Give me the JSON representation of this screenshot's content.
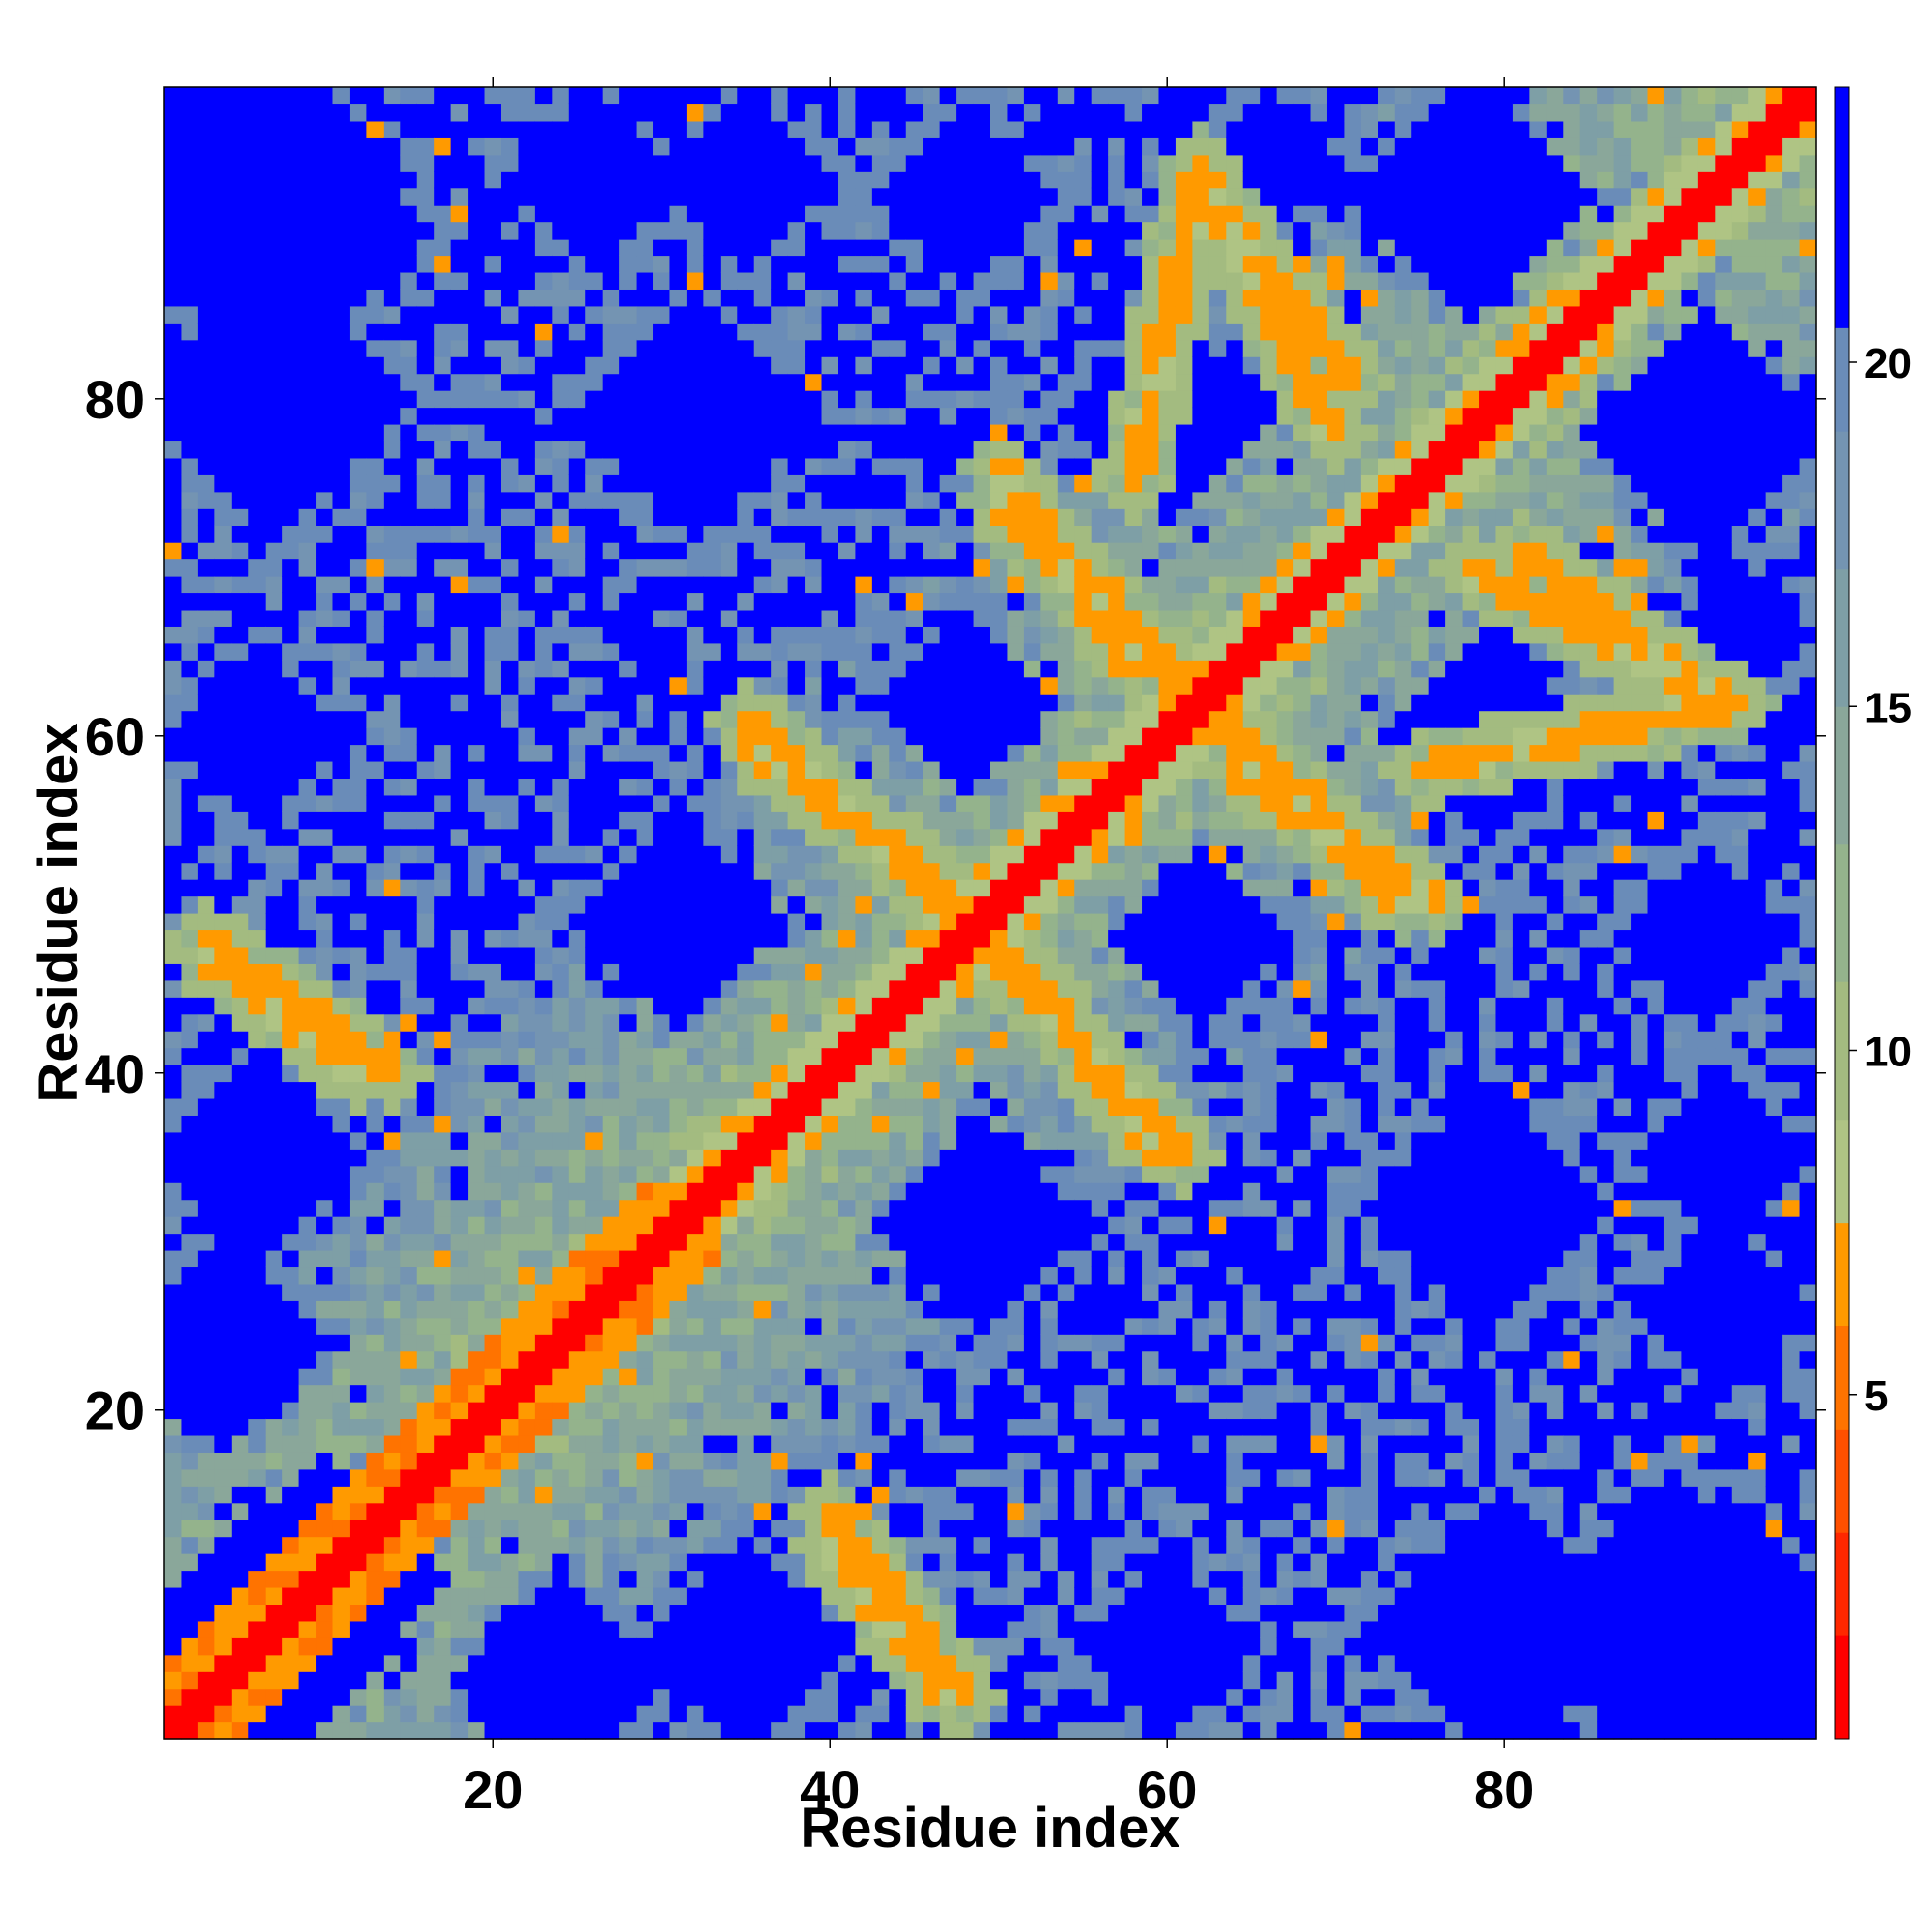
{
  "chart_data": {
    "type": "heatmap",
    "title": "",
    "xlabel": "Residue index",
    "ylabel": "Residue index",
    "n_residues": 98,
    "xlim": [
      0.5,
      98.5
    ],
    "ylim": [
      0.5,
      98.5
    ],
    "x_ticks": [
      20,
      40,
      60,
      80
    ],
    "x_tick_labels": [
      "20",
      "40",
      "60",
      "80"
    ],
    "y_ticks": [
      20,
      40,
      60,
      80
    ],
    "y_tick_labels": [
      "20",
      "40",
      "60",
      "80"
    ],
    "colorbar": {
      "range": [
        0,
        24
      ],
      "ticks": [
        5,
        10,
        15,
        20
      ],
      "tick_labels": [
        "5",
        "10",
        "15",
        "20"
      ],
      "bins": [
        {
          "max": 1.5,
          "color": "#ff0000"
        },
        {
          "max": 3.0,
          "color": "#ff2800"
        },
        {
          "max": 4.5,
          "color": "#ff5000"
        },
        {
          "max": 6.0,
          "color": "#ff7300"
        },
        {
          "max": 7.5,
          "color": "#ff9a00"
        },
        {
          "max": 9.0,
          "color": "#afc484"
        },
        {
          "max": 11.0,
          "color": "#a3bb80"
        },
        {
          "max": 13.0,
          "color": "#94b38c"
        },
        {
          "max": 15.0,
          "color": "#8aa79a"
        },
        {
          "max": 17.0,
          "color": "#7e9fa6"
        },
        {
          "max": 19.0,
          "color": "#7494b2"
        },
        {
          "max": 20.5,
          "color": "#6a8cb8"
        },
        {
          "max": 99.0,
          "color": "#0000ff"
        }
      ]
    },
    "matrix_description": "Symmetric residue-residue distance map (Angstrom). Main diagonal band 0-3; helix-like side bands; blue (>20.5) regions far from diagonal.",
    "features": {
      "diagonal_width": 1.6,
      "off_diagonal_streaks": [
        {
          "a": [
            35,
            61
          ],
          "b": [
            48,
            49
          ],
          "value": 6.5
        },
        {
          "a": [
            58,
            75
          ],
          "b": [
            62,
            94
          ],
          "value": 6.5
        },
        {
          "a": [
            40,
            12
          ],
          "b": [
            47,
            3
          ],
          "value": 6.5
        },
        {
          "a": [
            3,
            48
          ],
          "b": [
            14,
            40
          ],
          "value": 6.5
        },
        {
          "a": [
            50,
            48
          ],
          "b": [
            59,
            36
          ],
          "value": 6.5
        },
        {
          "a": [
            62,
            62
          ],
          "b": [
            74,
            50
          ],
          "value": 6.5
        },
        {
          "a": [
            50,
            76
          ],
          "b": [
            58,
            64
          ],
          "value": 6.5
        },
        {
          "a": [
            64,
            90
          ],
          "b": [
            71,
            81
          ],
          "value": 6.5
        },
        {
          "a": [
            78,
            70
          ],
          "b": [
            93,
            62
          ],
          "value": 6.5
        }
      ],
      "blue_patches": [
        {
          "cx": 5,
          "cy": 5,
          "r": 8
        },
        {
          "cx": 5,
          "cy": 93,
          "r": 10
        },
        {
          "cx": 93,
          "cy": 5,
          "r": 10
        },
        {
          "cx": 48,
          "cy": 92,
          "r": 5
        },
        {
          "cx": 92,
          "cy": 48,
          "r": 5
        },
        {
          "cx": 60,
          "cy": 79,
          "r": 6
        },
        {
          "cx": 79,
          "cy": 60,
          "r": 6
        },
        {
          "cx": 32,
          "cy": 79,
          "r": 7
        },
        {
          "cx": 79,
          "cy": 32,
          "r": 7
        },
        {
          "cx": 48,
          "cy": 62,
          "r": 5
        },
        {
          "cx": 62,
          "cy": 48,
          "r": 5
        },
        {
          "cx": 31,
          "cy": 49,
          "r": 6
        },
        {
          "cx": 49,
          "cy": 31,
          "r": 6
        },
        {
          "cx": 78,
          "cy": 92,
          "r": 7
        },
        {
          "cx": 92,
          "cy": 78,
          "r": 7
        },
        {
          "cx": 90,
          "cy": 89,
          "r": 4
        },
        {
          "cx": 10,
          "cy": 10,
          "r": 7
        },
        {
          "cx": 7,
          "cy": 80,
          "r": 8
        },
        {
          "cx": 80,
          "cy": 7,
          "r": 8
        },
        {
          "cx": 6,
          "cy": 60,
          "r": 5
        },
        {
          "cx": 60,
          "cy": 6,
          "r": 5
        },
        {
          "cx": 6,
          "cy": 35,
          "r": 6
        },
        {
          "cx": 35,
          "cy": 6,
          "r": 6
        },
        {
          "cx": 93,
          "cy": 35,
          "r": 5
        },
        {
          "cx": 35,
          "cy": 93,
          "r": 5
        },
        {
          "cx": 26,
          "cy": 93,
          "r": 5
        },
        {
          "cx": 93,
          "cy": 26,
          "r": 5
        },
        {
          "cx": 94,
          "cy": 66,
          "r": 4
        },
        {
          "cx": 66,
          "cy": 94,
          "r": 4
        },
        {
          "cx": 90,
          "cy": 10,
          "r": 6
        },
        {
          "cx": 10,
          "cy": 90,
          "r": 6
        },
        {
          "cx": 24,
          "cy": 4,
          "r": 6
        },
        {
          "cx": 4,
          "cy": 24,
          "r": 6
        }
      ]
    }
  }
}
